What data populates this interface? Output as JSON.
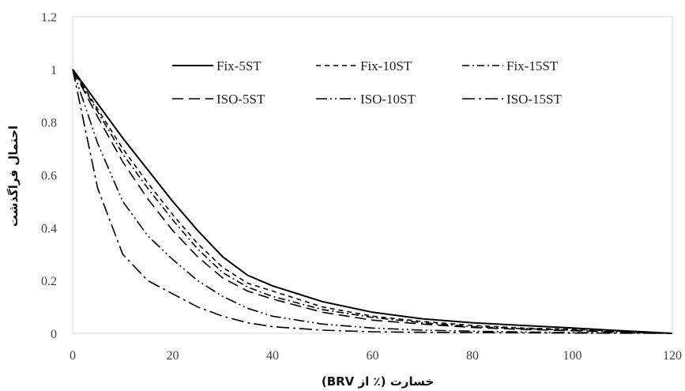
{
  "chart_data": {
    "type": "line",
    "title": "",
    "xlabel": "خسارت (٪ از BRV)",
    "ylabel": "احتمال فراگذشت",
    "xlim": [
      0,
      120
    ],
    "ylim": [
      0,
      1.2
    ],
    "x_ticks": [
      "0",
      "20",
      "40",
      "60",
      "80",
      "100",
      "120"
    ],
    "y_ticks": [
      "0",
      "0.2",
      "0.4",
      "0.6",
      "0.8",
      "1",
      "1.2"
    ],
    "grid": false,
    "legend_position": "top-right",
    "x": [
      0,
      5,
      10,
      15,
      20,
      25,
      30,
      35,
      40,
      50,
      60,
      70,
      80,
      90,
      100,
      110,
      120
    ],
    "series": [
      {
        "name": "Fix-5ST",
        "dash": "",
        "values": [
          1.0,
          0.87,
          0.74,
          0.62,
          0.5,
          0.39,
          0.29,
          0.22,
          0.18,
          0.12,
          0.08,
          0.055,
          0.04,
          0.03,
          0.02,
          0.01,
          0.0
        ]
      },
      {
        "name": "Fix-10ST",
        "dash": "6 5",
        "values": [
          1.0,
          0.85,
          0.7,
          0.57,
          0.45,
          0.34,
          0.25,
          0.19,
          0.16,
          0.1,
          0.065,
          0.045,
          0.03,
          0.02,
          0.015,
          0.008,
          0.0
        ]
      },
      {
        "name": "Fix-15ST",
        "dash": "9 4 2 4",
        "values": [
          1.0,
          0.84,
          0.68,
          0.55,
          0.43,
          0.32,
          0.23,
          0.175,
          0.14,
          0.09,
          0.06,
          0.04,
          0.025,
          0.018,
          0.012,
          0.006,
          0.0
        ]
      },
      {
        "name": "ISO-5ST",
        "dash": "14 7",
        "values": [
          1.0,
          0.82,
          0.65,
          0.51,
          0.39,
          0.29,
          0.21,
          0.16,
          0.13,
          0.08,
          0.05,
          0.035,
          0.022,
          0.015,
          0.01,
          0.005,
          0.0
        ]
      },
      {
        "name": "ISO-10ST",
        "dash": "14 4 2 4 2 4",
        "values": [
          1.0,
          0.72,
          0.5,
          0.37,
          0.28,
          0.2,
          0.14,
          0.095,
          0.065,
          0.035,
          0.02,
          0.012,
          0.008,
          0.005,
          0.003,
          0.0015,
          0.0
        ]
      },
      {
        "name": "ISO-15ST",
        "dash": "16 5 3 5",
        "values": [
          1.0,
          0.55,
          0.3,
          0.2,
          0.15,
          0.1,
          0.065,
          0.04,
          0.025,
          0.012,
          0.006,
          0.004,
          0.003,
          0.002,
          0.001,
          0.0005,
          0.0
        ]
      }
    ]
  }
}
